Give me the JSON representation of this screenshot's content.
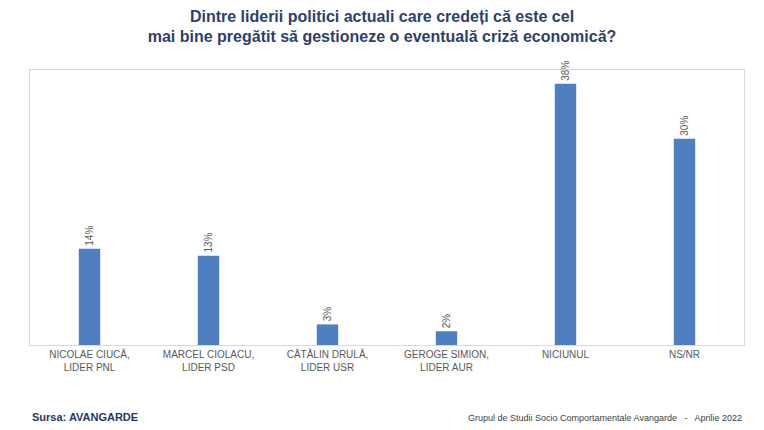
{
  "chart_data": {
    "type": "bar",
    "title": "Dintre liderii politici actuali care credeți că este cel mai bine pregătit să gestioneze o eventuală criză economică?",
    "categories": [
      "NICOLAE CIUCĂ, LIDER PNL",
      "MARCEL CIOLACU, LIDER PSD",
      "CĂTĂLIN DRULĂ, LIDER USR",
      "GEROGE SIMION, LIDER AUR",
      "NICIUNUL",
      "NS/NR"
    ],
    "values": [
      14,
      13,
      3,
      2,
      38,
      30
    ],
    "value_labels": [
      "14%",
      "13%",
      "3%",
      "2%",
      "38%",
      "30%"
    ],
    "color": "#4f7fc0",
    "ylim": [
      0,
      40
    ],
    "grid": false,
    "data_labels": true,
    "tick_labels": "x",
    "annotations": [
      "Sursa: AVANGARDE",
      "Grupul de Studii Socio Comportamentale Avangarde   -   Aprilie 2022"
    ]
  }
}
